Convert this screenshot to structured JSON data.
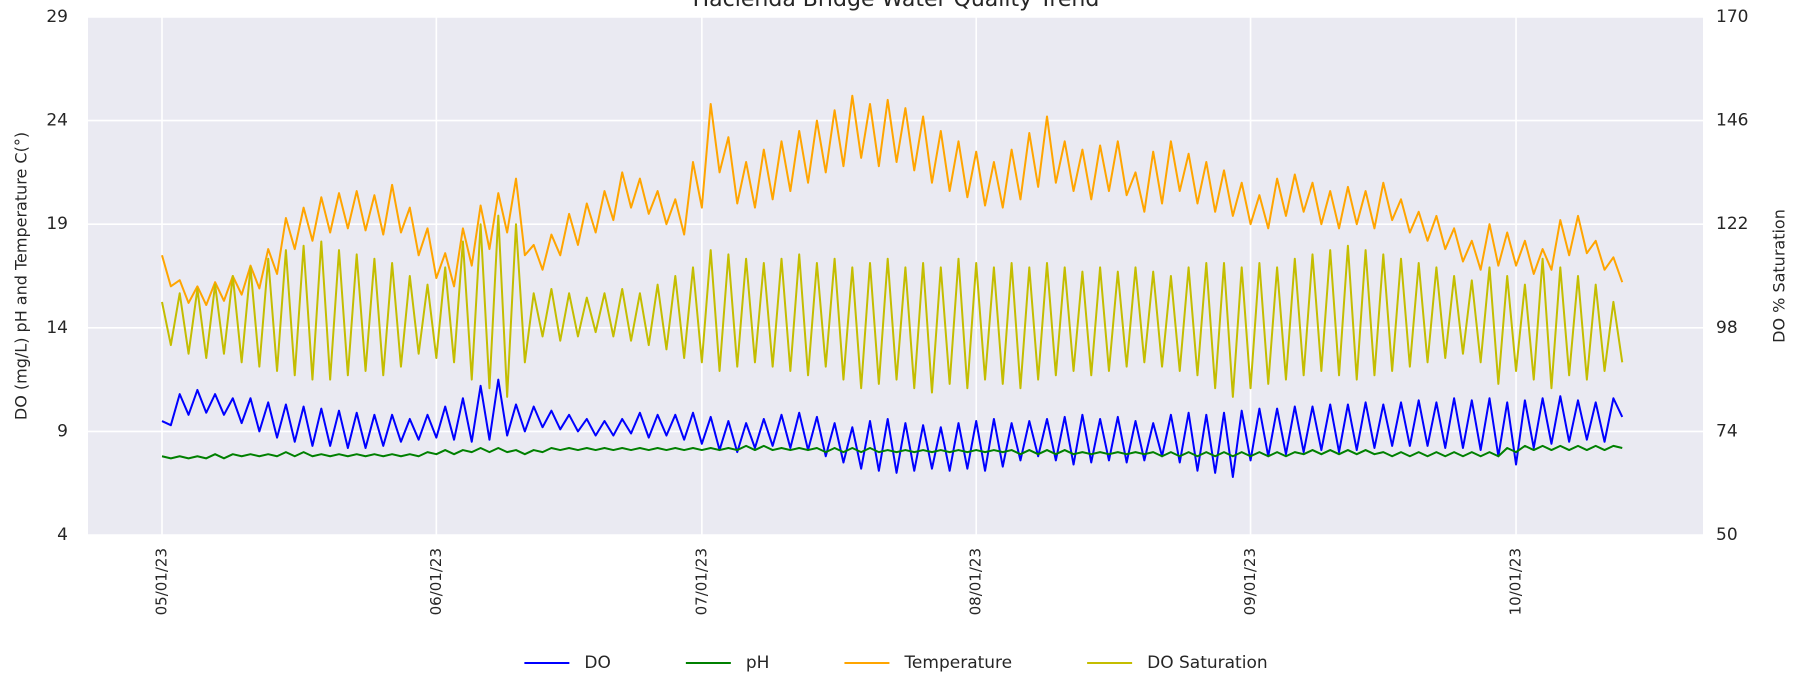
{
  "chart_data": {
    "type": "line",
    "title": "Hacienda Bridge Water Quality Trend",
    "y_label": "DO (mg/L) pH and Temperature C(°)",
    "y2_label": "DO % Saturation",
    "x": [
      "05/01/23",
      "05/02/23",
      "05/03/23",
      "05/04/23",
      "05/05/23",
      "05/06/23",
      "05/07/23",
      "05/08/23",
      "05/09/23",
      "05/10/23",
      "05/11/23",
      "05/12/23",
      "05/13/23",
      "05/14/23",
      "05/15/23",
      "05/16/23",
      "05/17/23",
      "05/18/23",
      "05/19/23",
      "05/20/23",
      "05/21/23",
      "05/22/23",
      "05/23/23",
      "05/24/23",
      "05/25/23",
      "05/26/23",
      "05/27/23",
      "05/28/23",
      "05/29/23",
      "05/30/23",
      "05/31/23",
      "06/01/23",
      "06/02/23",
      "06/03/23",
      "06/04/23",
      "06/05/23",
      "06/06/23",
      "06/07/23",
      "06/08/23",
      "06/09/23",
      "06/10/23",
      "06/11/23",
      "06/12/23",
      "06/13/23",
      "06/14/23",
      "06/15/23",
      "06/16/23",
      "06/17/23",
      "06/18/23",
      "06/19/23",
      "06/20/23",
      "06/21/23",
      "06/22/23",
      "06/23/23",
      "06/24/23",
      "06/25/23",
      "06/26/23",
      "06/27/23",
      "06/28/23",
      "06/29/23",
      "06/30/23",
      "07/01/23",
      "07/02/23",
      "07/03/23",
      "07/04/23",
      "07/05/23",
      "07/06/23",
      "07/07/23",
      "07/08/23",
      "07/09/23",
      "07/10/23",
      "07/11/23",
      "07/12/23",
      "07/13/23",
      "07/14/23",
      "07/15/23",
      "07/16/23",
      "07/17/23",
      "07/18/23",
      "07/19/23",
      "07/20/23",
      "07/21/23",
      "07/22/23",
      "07/23/23",
      "07/24/23",
      "07/25/23",
      "07/26/23",
      "07/27/23",
      "07/28/23",
      "07/29/23",
      "07/30/23",
      "07/31/23",
      "08/01/23",
      "08/02/23",
      "08/03/23",
      "08/04/23",
      "08/05/23",
      "08/06/23",
      "08/07/23",
      "08/08/23",
      "08/09/23",
      "08/10/23",
      "08/11/23",
      "08/12/23",
      "08/13/23",
      "08/14/23",
      "08/15/23",
      "08/16/23",
      "08/17/23",
      "08/18/23",
      "08/19/23",
      "08/20/23",
      "08/21/23",
      "08/22/23",
      "08/23/23",
      "08/24/23",
      "08/25/23",
      "08/26/23",
      "08/27/23",
      "08/28/23",
      "08/29/23",
      "08/30/23",
      "08/31/23",
      "09/01/23",
      "09/02/23",
      "09/03/23",
      "09/04/23",
      "09/05/23",
      "09/06/23",
      "09/07/23",
      "09/08/23",
      "09/09/23",
      "09/10/23",
      "09/11/23",
      "09/12/23",
      "09/13/23",
      "09/14/23",
      "09/15/23",
      "09/16/23",
      "09/17/23",
      "09/18/23",
      "09/19/23",
      "09/20/23",
      "09/21/23",
      "09/22/23",
      "09/23/23",
      "09/24/23",
      "09/25/23",
      "09/26/23",
      "09/27/23",
      "09/28/23",
      "09/29/23",
      "09/30/23",
      "10/01/23",
      "10/02/23",
      "10/03/23",
      "10/04/23",
      "10/05/23",
      "10/06/23",
      "10/07/23",
      "10/08/23",
      "10/09/23",
      "10/10/23",
      "10/11/23",
      "10/12/23",
      "10/13/23"
    ],
    "xticks": [
      "05/01/23",
      "06/01/23",
      "07/01/23",
      "08/01/23",
      "09/01/23",
      "10/01/23"
    ],
    "ylim": [
      4,
      29
    ],
    "yticks": [
      4,
      9,
      14,
      19,
      24,
      29
    ],
    "y2lim": [
      50,
      170
    ],
    "y2ticks": [
      50,
      74,
      98,
      122,
      146,
      170
    ],
    "grid": true,
    "legend": "bottom",
    "series": [
      {
        "name": "DO",
        "color": "#0000ff",
        "values": [
          9.5,
          9.3,
          10.8,
          9.8,
          11.0,
          9.9,
          10.8,
          9.8,
          10.6,
          9.4,
          10.6,
          9.0,
          10.4,
          8.7,
          10.3,
          8.5,
          10.2,
          8.3,
          10.1,
          8.3,
          10.0,
          8.2,
          9.9,
          8.2,
          9.8,
          8.3,
          9.8,
          8.5,
          9.6,
          8.6,
          9.8,
          8.7,
          10.2,
          8.6,
          10.6,
          8.5,
          11.2,
          8.6,
          11.5,
          8.8,
          10.3,
          9.0,
          10.2,
          9.2,
          10.0,
          9.1,
          9.8,
          9.0,
          9.6,
          8.8,
          9.5,
          8.8,
          9.6,
          8.9,
          9.9,
          8.7,
          9.8,
          8.8,
          9.8,
          8.6,
          9.9,
          8.4,
          9.7,
          8.1,
          9.5,
          8.0,
          9.4,
          8.2,
          9.6,
          8.3,
          9.8,
          8.2,
          9.9,
          8.1,
          9.7,
          7.8,
          9.4,
          7.5,
          9.2,
          7.2,
          9.5,
          7.1,
          9.6,
          7.0,
          9.4,
          7.1,
          9.3,
          7.2,
          9.2,
          7.1,
          9.4,
          7.2,
          9.5,
          7.1,
          9.6,
          7.3,
          9.4,
          7.6,
          9.5,
          7.8,
          9.6,
          7.6,
          9.7,
          7.4,
          9.8,
          7.5,
          9.6,
          7.6,
          9.7,
          7.5,
          9.5,
          7.6,
          9.4,
          7.8,
          9.8,
          7.5,
          9.9,
          7.1,
          9.8,
          7.0,
          9.9,
          6.8,
          10.0,
          7.6,
          10.1,
          7.8,
          10.1,
          7.9,
          10.2,
          8.0,
          10.2,
          8.1,
          10.3,
          8.0,
          10.3,
          8.1,
          10.4,
          8.2,
          10.3,
          8.3,
          10.4,
          8.3,
          10.5,
          8.3,
          10.4,
          8.2,
          10.6,
          8.2,
          10.5,
          8.1,
          10.6,
          7.8,
          10.4,
          7.4,
          10.5,
          8.2,
          10.6,
          8.4,
          10.7,
          8.5,
          10.5,
          8.6,
          10.4,
          8.5,
          10.6,
          9.7
        ]
      },
      {
        "name": "pH",
        "color": "#008000",
        "values": [
          7.8,
          7.7,
          7.8,
          7.7,
          7.8,
          7.7,
          7.9,
          7.7,
          7.9,
          7.8,
          7.9,
          7.8,
          7.9,
          7.8,
          8.0,
          7.8,
          8.0,
          7.8,
          7.9,
          7.8,
          7.9,
          7.8,
          7.9,
          7.8,
          7.9,
          7.8,
          7.9,
          7.8,
          7.9,
          7.8,
          8.0,
          7.9,
          8.1,
          7.9,
          8.1,
          8.0,
          8.2,
          8.0,
          8.2,
          8.0,
          8.1,
          7.9,
          8.1,
          8.0,
          8.2,
          8.1,
          8.2,
          8.1,
          8.2,
          8.1,
          8.2,
          8.1,
          8.2,
          8.1,
          8.2,
          8.1,
          8.2,
          8.1,
          8.2,
          8.1,
          8.2,
          8.1,
          8.2,
          8.1,
          8.2,
          8.1,
          8.3,
          8.1,
          8.3,
          8.1,
          8.2,
          8.1,
          8.2,
          8.1,
          8.2,
          8.0,
          8.2,
          8.0,
          8.2,
          8.0,
          8.2,
          8.0,
          8.1,
          8.0,
          8.1,
          8.0,
          8.1,
          8.0,
          8.1,
          8.0,
          8.1,
          8.0,
          8.1,
          8.0,
          8.1,
          8.0,
          8.1,
          7.9,
          8.1,
          7.9,
          8.1,
          7.9,
          8.1,
          7.9,
          8.0,
          7.9,
          8.0,
          7.9,
          8.0,
          7.9,
          8.0,
          7.9,
          8.0,
          7.8,
          8.0,
          7.8,
          8.0,
          7.8,
          8.0,
          7.8,
          8.0,
          7.8,
          8.0,
          7.8,
          8.0,
          7.8,
          8.0,
          7.8,
          8.0,
          7.9,
          8.1,
          7.9,
          8.1,
          7.9,
          8.1,
          7.9,
          8.1,
          7.9,
          8.0,
          7.8,
          8.0,
          7.8,
          8.0,
          7.8,
          8.0,
          7.8,
          8.0,
          7.8,
          8.0,
          7.8,
          8.0,
          7.8,
          8.2,
          8.0,
          8.3,
          8.1,
          8.3,
          8.1,
          8.3,
          8.1,
          8.3,
          8.1,
          8.3,
          8.1,
          8.3,
          8.2
        ]
      },
      {
        "name": "Temperature",
        "color": "#ffa500",
        "values": [
          17.5,
          16.0,
          16.3,
          15.2,
          16.0,
          15.1,
          16.2,
          15.3,
          16.5,
          15.6,
          17.0,
          15.9,
          17.8,
          16.6,
          19.3,
          17.8,
          19.8,
          18.2,
          20.3,
          18.6,
          20.5,
          18.8,
          20.6,
          18.7,
          20.4,
          18.5,
          20.9,
          18.6,
          19.8,
          17.5,
          18.8,
          16.4,
          17.6,
          16.0,
          18.8,
          17.0,
          19.9,
          17.8,
          20.5,
          18.6,
          21.2,
          17.5,
          18.0,
          16.8,
          18.5,
          17.5,
          19.5,
          18.0,
          20.0,
          18.6,
          20.6,
          19.2,
          21.5,
          19.8,
          21.2,
          19.5,
          20.6,
          19.0,
          20.2,
          18.5,
          22.0,
          19.8,
          24.8,
          21.5,
          23.2,
          20.0,
          22.0,
          19.8,
          22.6,
          20.2,
          23.0,
          20.6,
          23.5,
          21.0,
          24.0,
          21.5,
          24.5,
          21.8,
          25.2,
          22.2,
          24.8,
          21.8,
          25.0,
          22.0,
          24.6,
          21.6,
          24.2,
          21.0,
          23.5,
          20.6,
          23.0,
          20.3,
          22.5,
          19.9,
          22.0,
          19.8,
          22.6,
          20.2,
          23.4,
          20.8,
          24.2,
          21.0,
          23.0,
          20.6,
          22.6,
          20.2,
          22.8,
          20.6,
          23.0,
          20.4,
          21.5,
          19.6,
          22.5,
          20.0,
          23.0,
          20.6,
          22.4,
          20.0,
          22.0,
          19.6,
          21.6,
          19.4,
          21.0,
          19.0,
          20.4,
          18.8,
          21.2,
          19.4,
          21.4,
          19.6,
          21.0,
          19.0,
          20.6,
          18.8,
          20.8,
          19.0,
          20.6,
          18.8,
          21.0,
          19.2,
          20.2,
          18.6,
          19.6,
          18.2,
          19.4,
          17.8,
          18.8,
          17.2,
          18.2,
          16.8,
          19.0,
          17.0,
          18.6,
          17.0,
          18.2,
          16.6,
          17.8,
          16.8,
          19.2,
          17.5,
          19.4,
          17.6,
          18.2,
          16.8,
          17.4,
          16.2
        ]
      },
      {
        "name": "DO Saturation",
        "color": "#c4bd00",
        "axis": "y2",
        "values": [
          104,
          94,
          106,
          92,
          107,
          91,
          108,
          92,
          110,
          90,
          112,
          89,
          114,
          88,
          116,
          87,
          117,
          86,
          118,
          86,
          116,
          87,
          115,
          88,
          114,
          87,
          113,
          89,
          110,
          92,
          108,
          91,
          112,
          90,
          118,
          86,
          122,
          84,
          124,
          82,
          122,
          90,
          106,
          96,
          107,
          95,
          106,
          96,
          105,
          97,
          106,
          96,
          107,
          95,
          106,
          94,
          108,
          93,
          110,
          91,
          112,
          90,
          116,
          88,
          115,
          89,
          114,
          90,
          113,
          89,
          114,
          88,
          115,
          87,
          113,
          89,
          114,
          86,
          112,
          84,
          113,
          85,
          114,
          86,
          112,
          84,
          113,
          83,
          112,
          85,
          114,
          84,
          113,
          86,
          112,
          85,
          113,
          84,
          112,
          86,
          113,
          87,
          112,
          88,
          111,
          87,
          112,
          88,
          111,
          89,
          112,
          90,
          111,
          89,
          110,
          88,
          112,
          87,
          113,
          84,
          113,
          82,
          112,
          84,
          113,
          85,
          112,
          86,
          114,
          87,
          115,
          88,
          116,
          87,
          117,
          86,
          116,
          87,
          115,
          88,
          114,
          89,
          113,
          90,
          112,
          91,
          110,
          92,
          109,
          90,
          112,
          85,
          110,
          88,
          108,
          86,
          114,
          84,
          112,
          87,
          110,
          86,
          108,
          88,
          104,
          90
        ]
      }
    ]
  }
}
